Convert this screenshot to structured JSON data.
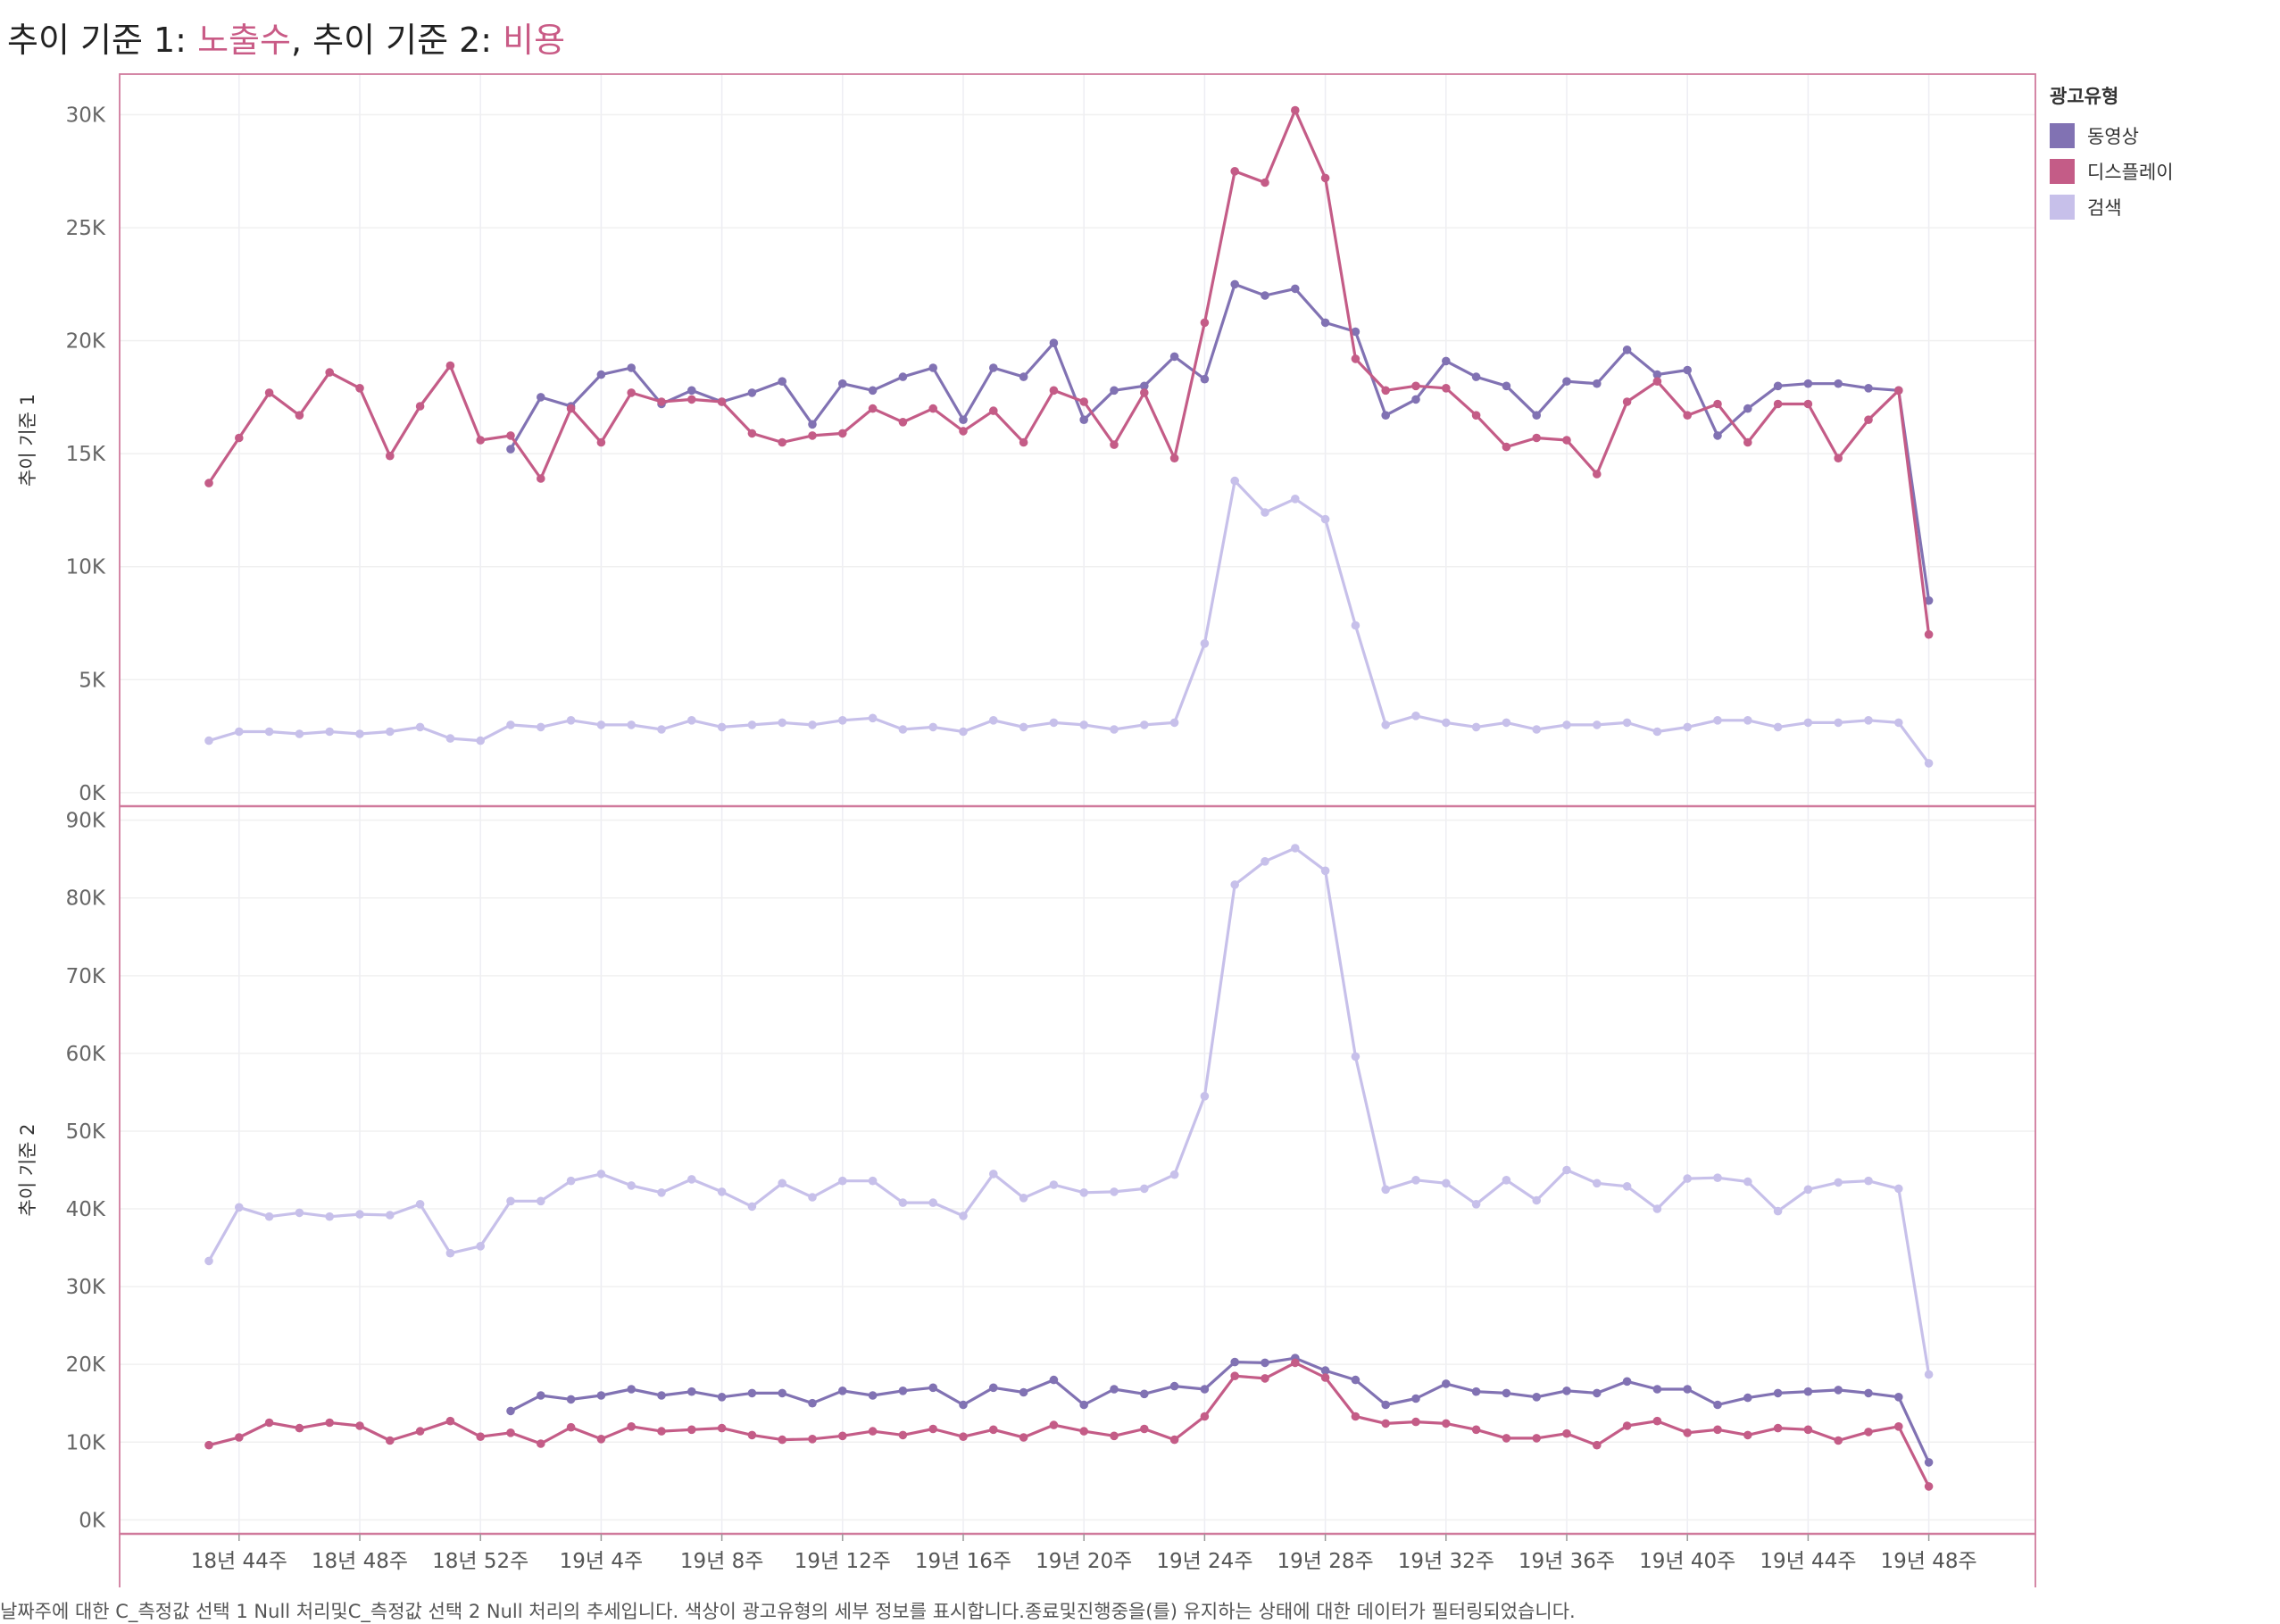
{
  "title": {
    "p1": "추이 기준 1: ",
    "m1": "노출수",
    "p2": ", 추이 기준 2: ",
    "m2": "비용"
  },
  "caption": "날짜주에 대한 C_측정값 선택 1 Null 처리및C_측정값 선택 2 Null 처리의 추세입니다. 색상이 광고유형의 세부 정보를 표시합니다.종료및진행중을(를) 유지하는 상태에 대한 데이터가 필터링되었습니다.",
  "legend": {
    "title": "광고유형",
    "items": [
      {
        "label": "동영상",
        "color": "#8172b3"
      },
      {
        "label": "디스플레이",
        "color": "#c45c87"
      },
      {
        "label": "검색",
        "color": "#c7c0ea"
      }
    ]
  },
  "colors": {
    "accent": "#c95b86",
    "frame": "#d07a9c"
  },
  "chart_data": {
    "type": "line",
    "x_tick_labels": [
      "18년 44주",
      "18년 48주",
      "18년 52주",
      "19년 4주",
      "19년 8주",
      "19년 12주",
      "19년 16주",
      "19년 20주",
      "19년 24주",
      "19년 28주",
      "19년 32주",
      "19년 36주",
      "19년 40주",
      "19년 44주",
      "19년 48주"
    ],
    "x_tick_index": [
      1,
      5,
      9,
      13,
      17,
      21,
      25,
      29,
      33,
      37,
      41,
      45,
      49,
      53,
      57
    ],
    "panes": [
      {
        "ylabel": "추이 기준 1",
        "yticks": [
          0,
          5000,
          10000,
          15000,
          20000,
          25000,
          30000
        ],
        "ytick_labels": [
          "0K",
          "5K",
          "10K",
          "15K",
          "20K",
          "25K",
          "30K"
        ],
        "ylim": [
          -600,
          31800
        ],
        "series": [
          {
            "name": "동영상",
            "start": 10,
            "values": [
              15200,
              17500,
              17100,
              18500,
              18800,
              17200,
              17800,
              17300,
              17700,
              18200,
              16300,
              18100,
              17800,
              18400,
              18800,
              16500,
              18800,
              18400,
              19900,
              16500,
              17800,
              18000,
              19300,
              18300,
              22500,
              22000,
              22300,
              20800,
              20400,
              16700,
              17400,
              19100,
              18400,
              18000,
              16700,
              18200,
              18100,
              19600,
              18500,
              18700,
              15800,
              17000,
              18000,
              18100,
              18100,
              17900,
              17800,
              8500
            ]
          },
          {
            "name": "디스플레이",
            "start": 0,
            "values": [
              13700,
              15700,
              17700,
              16700,
              18600,
              17900,
              14900,
              17100,
              18900,
              15600,
              15800,
              13900,
              17000,
              15500,
              17700,
              17300,
              17400,
              17300,
              15900,
              15500,
              15800,
              15900,
              17000,
              16400,
              17000,
              16000,
              16900,
              15500,
              17800,
              17300,
              15400,
              17700,
              14800,
              20800,
              27500,
              27000,
              30200,
              27200,
              19200,
              17800,
              18000,
              17900,
              16700,
              15300,
              15700,
              15600,
              14100,
              17300,
              18200,
              16700,
              17200,
              15500,
              17200,
              17200,
              14800,
              16500,
              17800,
              7000
            ]
          },
          {
            "name": "검색",
            "start": 0,
            "values": [
              2300,
              2700,
              2700,
              2600,
              2700,
              2600,
              2700,
              2900,
              2400,
              2300,
              3000,
              2900,
              3200,
              3000,
              3000,
              2800,
              3200,
              2900,
              3000,
              3100,
              3000,
              3200,
              3300,
              2800,
              2900,
              2700,
              3200,
              2900,
              3100,
              3000,
              2800,
              3000,
              3100,
              6600,
              13800,
              12400,
              13000,
              12100,
              7400,
              3000,
              3400,
              3100,
              2900,
              3100,
              2800,
              3000,
              3000,
              3100,
              2700,
              2900,
              3200,
              3200,
              2900,
              3100,
              3100,
              3200,
              3100,
              1300
            ]
          }
        ]
      },
      {
        "ylabel": "추이 기준 2",
        "yticks": [
          0,
          10000,
          20000,
          30000,
          40000,
          50000,
          60000,
          70000,
          80000,
          90000
        ],
        "ytick_labels": [
          "0K",
          "10K",
          "20K",
          "30K",
          "40K",
          "50K",
          "60K",
          "70K",
          "80K",
          "90K"
        ],
        "ylim": [
          -1800,
          91800
        ],
        "series": [
          {
            "name": "동영상",
            "start": 10,
            "values": [
              14000,
              16000,
              15500,
              16000,
              16800,
              16000,
              16500,
              15800,
              16300,
              16300,
              15000,
              16600,
              16000,
              16600,
              17000,
              14800,
              17000,
              16400,
              18000,
              14800,
              16800,
              16200,
              17200,
              16800,
              20300,
              20200,
              20800,
              19200,
              18000,
              14800,
              15600,
              17500,
              16500,
              16300,
              15800,
              16600,
              16300,
              17800,
              16800,
              16800,
              14800,
              15700,
              16300,
              16500,
              16700,
              16300,
              15800,
              7400
            ]
          },
          {
            "name": "디스플레이",
            "start": 0,
            "values": [
              9600,
              10600,
              12500,
              11800,
              12500,
              12100,
              10200,
              11400,
              12700,
              10700,
              11200,
              9800,
              11900,
              10400,
              12000,
              11400,
              11600,
              11800,
              10900,
              10300,
              10400,
              10800,
              11400,
              10900,
              11700,
              10700,
              11600,
              10600,
              12200,
              11400,
              10800,
              11700,
              10300,
              13300,
              18500,
              18200,
              20200,
              18300,
              13300,
              12400,
              12600,
              12400,
              11600,
              10500,
              10500,
              11100,
              9600,
              12100,
              12700,
              11200,
              11600,
              10900,
              11800,
              11600,
              10200,
              11300,
              12000,
              4300
            ]
          },
          {
            "name": "검색",
            "start": 0,
            "values": [
              33300,
              40200,
              39000,
              39500,
              39000,
              39300,
              39200,
              40600,
              34300,
              35200,
              41000,
              41000,
              43600,
              44500,
              43000,
              42100,
              43800,
              42200,
              40300,
              43300,
              41500,
              43600,
              43600,
              40800,
              40800,
              39100,
              44500,
              41400,
              43100,
              42100,
              42200,
              42600,
              44400,
              54500,
              81700,
              84700,
              86400,
              83500,
              59600,
              42500,
              43700,
              43300,
              40600,
              43700,
              41100,
              45000,
              43300,
              42900,
              40000,
              43900,
              44000,
              43500,
              39700,
              42500,
              43400,
              43600,
              42600,
              18700
            ]
          }
        ]
      }
    ]
  }
}
